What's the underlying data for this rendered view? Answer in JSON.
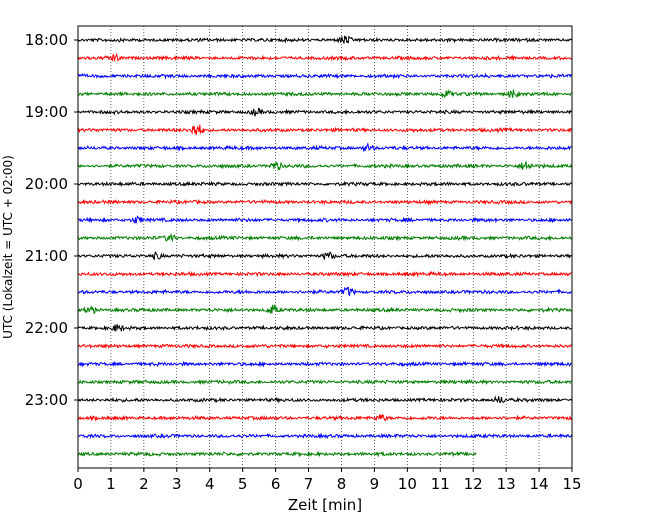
{
  "chart_data": {
    "type": "line",
    "title": "",
    "xlabel": "Zeit  [min]",
    "ylabel": "UTC (Lokalzeit = UTC + 02:00)",
    "xlim": [
      0,
      15
    ],
    "x_ticks": [
      "0",
      "1",
      "2",
      "3",
      "4",
      "5",
      "6",
      "7",
      "8",
      "9",
      "10",
      "11",
      "12",
      "13",
      "14",
      "15"
    ],
    "y_tick_labels": [
      "18:00",
      "19:00",
      "20:00",
      "21:00",
      "22:00",
      "23:00"
    ],
    "grid": "vertical dotted lines at each minute",
    "trace_interval_minutes": 15,
    "trace_colors": [
      "#000000",
      "#ff0000",
      "#0000ff",
      "#007f00"
    ],
    "traces": [
      {
        "start": "18:00",
        "end_minute": 15,
        "color": "#000000"
      },
      {
        "start": "18:15",
        "end_minute": 15,
        "color": "#ff0000"
      },
      {
        "start": "18:30",
        "end_minute": 15,
        "color": "#0000ff"
      },
      {
        "start": "18:45",
        "end_minute": 15,
        "color": "#007f00"
      },
      {
        "start": "19:00",
        "end_minute": 15,
        "color": "#000000"
      },
      {
        "start": "19:15",
        "end_minute": 15,
        "color": "#ff0000"
      },
      {
        "start": "19:30",
        "end_minute": 15,
        "color": "#0000ff"
      },
      {
        "start": "19:45",
        "end_minute": 15,
        "color": "#007f00"
      },
      {
        "start": "20:00",
        "end_minute": 15,
        "color": "#000000"
      },
      {
        "start": "20:15",
        "end_minute": 15,
        "color": "#ff0000"
      },
      {
        "start": "20:30",
        "end_minute": 15,
        "color": "#0000ff"
      },
      {
        "start": "20:45",
        "end_minute": 15,
        "color": "#007f00"
      },
      {
        "start": "21:00",
        "end_minute": 15,
        "color": "#000000"
      },
      {
        "start": "21:15",
        "end_minute": 15,
        "color": "#ff0000"
      },
      {
        "start": "21:30",
        "end_minute": 15,
        "color": "#0000ff"
      },
      {
        "start": "21:45",
        "end_minute": 15,
        "color": "#007f00"
      },
      {
        "start": "22:00",
        "end_minute": 15,
        "color": "#000000"
      },
      {
        "start": "22:15",
        "end_minute": 15,
        "color": "#ff0000"
      },
      {
        "start": "22:30",
        "end_minute": 15,
        "color": "#0000ff"
      },
      {
        "start": "22:45",
        "end_minute": 15,
        "color": "#007f00"
      },
      {
        "start": "23:00",
        "end_minute": 15,
        "color": "#000000"
      },
      {
        "start": "23:15",
        "end_minute": 15,
        "color": "#ff0000"
      },
      {
        "start": "23:30",
        "end_minute": 15,
        "color": "#0000ff"
      },
      {
        "start": "23:45",
        "end_minute": 12.1,
        "color": "#007f00"
      }
    ],
    "events": [
      {
        "trace": "18:00",
        "minute": 8.1,
        "amplitude": 1.3
      },
      {
        "trace": "18:15",
        "minute": 1.1,
        "amplitude": 1.0
      },
      {
        "trace": "18:45",
        "minute": 11.2,
        "amplitude": 1.0
      },
      {
        "trace": "18:45",
        "minute": 13.2,
        "amplitude": 1.1
      },
      {
        "trace": "19:00",
        "minute": 5.4,
        "amplitude": 1.0
      },
      {
        "trace": "19:15",
        "minute": 3.6,
        "amplitude": 2.2
      },
      {
        "trace": "19:30",
        "minute": 8.8,
        "amplitude": 1.0
      },
      {
        "trace": "19:45",
        "minute": 6.0,
        "amplitude": 1.3
      },
      {
        "trace": "19:45",
        "minute": 13.6,
        "amplitude": 1.4
      },
      {
        "trace": "20:30",
        "minute": 1.8,
        "amplitude": 1.0
      },
      {
        "trace": "20:45",
        "minute": 2.8,
        "amplitude": 1.1
      },
      {
        "trace": "21:00",
        "minute": 2.4,
        "amplitude": 1.0
      },
      {
        "trace": "21:00",
        "minute": 7.6,
        "amplitude": 1.2
      },
      {
        "trace": "21:30",
        "minute": 8.2,
        "amplitude": 1.3
      },
      {
        "trace": "21:45",
        "minute": 0.4,
        "amplitude": 1.0
      },
      {
        "trace": "21:45",
        "minute": 5.9,
        "amplitude": 1.4
      },
      {
        "trace": "22:00",
        "minute": 1.2,
        "amplitude": 1.0
      },
      {
        "trace": "23:00",
        "minute": 12.8,
        "amplitude": 1.0
      },
      {
        "trace": "23:15",
        "minute": 9.2,
        "amplitude": 1.0
      }
    ]
  }
}
